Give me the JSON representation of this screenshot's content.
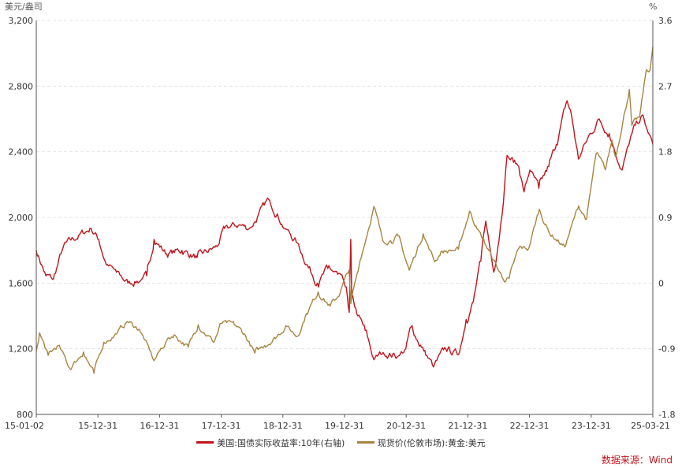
{
  "chart_data": {
    "type": "line",
    "left_unit": "美元/盎司",
    "right_unit": "%",
    "y_left": {
      "ticks": [
        "3,200",
        "2,800",
        "2,400",
        "2,000",
        "1,600",
        "1,200",
        "800"
      ],
      "range": [
        800,
        3200
      ]
    },
    "y_right": {
      "ticks": [
        "3.6",
        "2.7",
        "1.8",
        "0.9",
        "0",
        "-0.9",
        "-1.8"
      ],
      "range": [
        -1.8,
        3.6
      ]
    },
    "x_ticks": [
      "15-01-02",
      "15-12-31",
      "16-12-31",
      "17-12-31",
      "18-12-31",
      "19-12-31",
      "20-12-31",
      "21-12-31",
      "22-12-31",
      "23-12-31",
      "25-03-21"
    ],
    "grid": true,
    "legend_position": "bottom",
    "series": [
      {
        "name": "美国:国债实际收益率:10年(右轴)",
        "axis": "right",
        "color": "#c0141c",
        "points": [
          [
            "2015-01-02",
            0.45
          ],
          [
            "2015-03-01",
            0.1
          ],
          [
            "2015-04-15",
            0.05
          ],
          [
            "2015-06-15",
            0.5
          ],
          [
            "2015-09-15",
            0.65
          ],
          [
            "2015-11-30",
            0.75
          ],
          [
            "2016-01-15",
            0.6
          ],
          [
            "2016-03-01",
            0.25
          ],
          [
            "2016-05-01",
            0.15
          ],
          [
            "2016-07-10",
            0.0
          ],
          [
            "2016-09-30",
            0.05
          ],
          [
            "2016-11-01",
            0.1
          ],
          [
            "2016-12-15",
            0.6
          ],
          [
            "2017-03-01",
            0.4
          ],
          [
            "2017-06-01",
            0.45
          ],
          [
            "2017-09-01",
            0.35
          ],
          [
            "2017-12-31",
            0.5
          ],
          [
            "2018-02-15",
            0.75
          ],
          [
            "2018-05-15",
            0.8
          ],
          [
            "2018-07-15",
            0.75
          ],
          [
            "2018-09-01",
            0.9
          ],
          [
            "2018-11-08",
            1.15
          ],
          [
            "2018-12-31",
            0.95
          ],
          [
            "2019-02-15",
            0.75
          ],
          [
            "2019-05-01",
            0.55
          ],
          [
            "2019-07-01",
            0.25
          ],
          [
            "2019-08-30",
            0.0
          ],
          [
            "2019-11-01",
            0.2
          ],
          [
            "2019-12-31",
            0.12
          ],
          [
            "2020-02-15",
            -0.05
          ],
          [
            "2020-03-10",
            -0.4
          ],
          [
            "2020-03-19",
            0.6
          ],
          [
            "2020-03-25",
            -0.2
          ],
          [
            "2020-05-01",
            -0.45
          ],
          [
            "2020-06-15",
            -0.65
          ],
          [
            "2020-08-06",
            -1.05
          ],
          [
            "2020-10-01",
            -0.95
          ],
          [
            "2020-12-31",
            -1.0
          ],
          [
            "2021-02-15",
            -0.9
          ],
          [
            "2021-03-19",
            -0.6
          ],
          [
            "2021-05-15",
            -0.85
          ],
          [
            "2021-08-02",
            -1.15
          ],
          [
            "2021-10-15",
            -0.9
          ],
          [
            "2021-12-31",
            -0.98
          ],
          [
            "2022-02-15",
            -0.5
          ],
          [
            "2022-03-31",
            -0.25
          ],
          [
            "2022-05-15",
            0.3
          ],
          [
            "2022-06-14",
            0.85
          ],
          [
            "2022-08-01",
            0.15
          ],
          [
            "2022-09-15",
            0.85
          ],
          [
            "2022-10-21",
            1.75
          ],
          [
            "2022-12-31",
            1.6
          ],
          [
            "2023-02-01",
            1.25
          ],
          [
            "2023-03-08",
            1.55
          ],
          [
            "2023-05-01",
            1.3
          ],
          [
            "2023-06-30",
            1.6
          ],
          [
            "2023-08-15",
            1.9
          ],
          [
            "2023-10-19",
            2.5
          ],
          [
            "2023-11-15",
            2.3
          ],
          [
            "2023-12-27",
            1.7
          ],
          [
            "2024-02-15",
            1.95
          ],
          [
            "2024-04-30",
            2.25
          ],
          [
            "2024-06-30",
            2.05
          ],
          [
            "2024-09-16",
            1.55
          ],
          [
            "2024-11-15",
            2.05
          ],
          [
            "2025-01-14",
            2.3
          ],
          [
            "2025-02-15",
            2.1
          ],
          [
            "2025-03-21",
            1.9
          ]
        ]
      },
      {
        "name": "现货价(伦敦市场):黄金:美元",
        "axis": "left",
        "color": "#a8843f",
        "points": [
          [
            "2015-01-02",
            1186
          ],
          [
            "2015-01-22",
            1298
          ],
          [
            "2015-03-15",
            1160
          ],
          [
            "2015-05-15",
            1220
          ],
          [
            "2015-07-24",
            1080
          ],
          [
            "2015-10-15",
            1180
          ],
          [
            "2015-12-17",
            1050
          ],
          [
            "2016-02-15",
            1240
          ],
          [
            "2016-05-01",
            1290
          ],
          [
            "2016-07-06",
            1366
          ],
          [
            "2016-09-15",
            1320
          ],
          [
            "2016-10-15",
            1260
          ],
          [
            "2016-12-15",
            1128
          ],
          [
            "2017-03-01",
            1250
          ],
          [
            "2017-04-15",
            1285
          ],
          [
            "2017-07-10",
            1210
          ],
          [
            "2017-09-08",
            1346
          ],
          [
            "2017-12-12",
            1240
          ],
          [
            "2018-01-25",
            1355
          ],
          [
            "2018-04-15",
            1345
          ],
          [
            "2018-06-15",
            1290
          ],
          [
            "2018-08-16",
            1174
          ],
          [
            "2018-10-15",
            1220
          ],
          [
            "2018-12-31",
            1279
          ],
          [
            "2019-02-20",
            1340
          ],
          [
            "2019-04-30",
            1275
          ],
          [
            "2019-06-25",
            1415
          ],
          [
            "2019-09-04",
            1546
          ],
          [
            "2019-11-15",
            1460
          ],
          [
            "2019-12-31",
            1515
          ],
          [
            "2020-03-09",
            1680
          ],
          [
            "2020-03-19",
            1474
          ],
          [
            "2020-05-15",
            1740
          ],
          [
            "2020-08-06",
            2067
          ],
          [
            "2020-09-28",
            1860
          ],
          [
            "2020-11-15",
            1860
          ],
          [
            "2020-12-31",
            1887
          ],
          [
            "2021-03-08",
            1678
          ],
          [
            "2021-05-31",
            1900
          ],
          [
            "2021-08-09",
            1730
          ],
          [
            "2021-09-15",
            1790
          ],
          [
            "2021-12-31",
            1806
          ],
          [
            "2022-03-08",
            2039
          ],
          [
            "2022-04-15",
            1950
          ],
          [
            "2022-06-15",
            1830
          ],
          [
            "2022-09-28",
            1623
          ],
          [
            "2022-11-03",
            1630
          ],
          [
            "2022-12-31",
            1812
          ],
          [
            "2023-02-28",
            1810
          ],
          [
            "2023-05-04",
            2050
          ],
          [
            "2023-07-01",
            1910
          ],
          [
            "2023-10-05",
            1820
          ],
          [
            "2023-12-28",
            2070
          ],
          [
            "2024-02-14",
            1990
          ],
          [
            "2024-04-12",
            2390
          ],
          [
            "2024-06-07",
            2290
          ],
          [
            "2024-07-17",
            2470
          ],
          [
            "2024-08-07",
            2370
          ],
          [
            "2024-10-30",
            2780
          ],
          [
            "2024-11-14",
            2560
          ],
          [
            "2024-12-31",
            2610
          ],
          [
            "2025-02-10",
            2900
          ],
          [
            "2025-03-05",
            2900
          ],
          [
            "2025-03-21",
            3040
          ]
        ]
      }
    ],
    "source_label": "数据来源：Wind"
  }
}
